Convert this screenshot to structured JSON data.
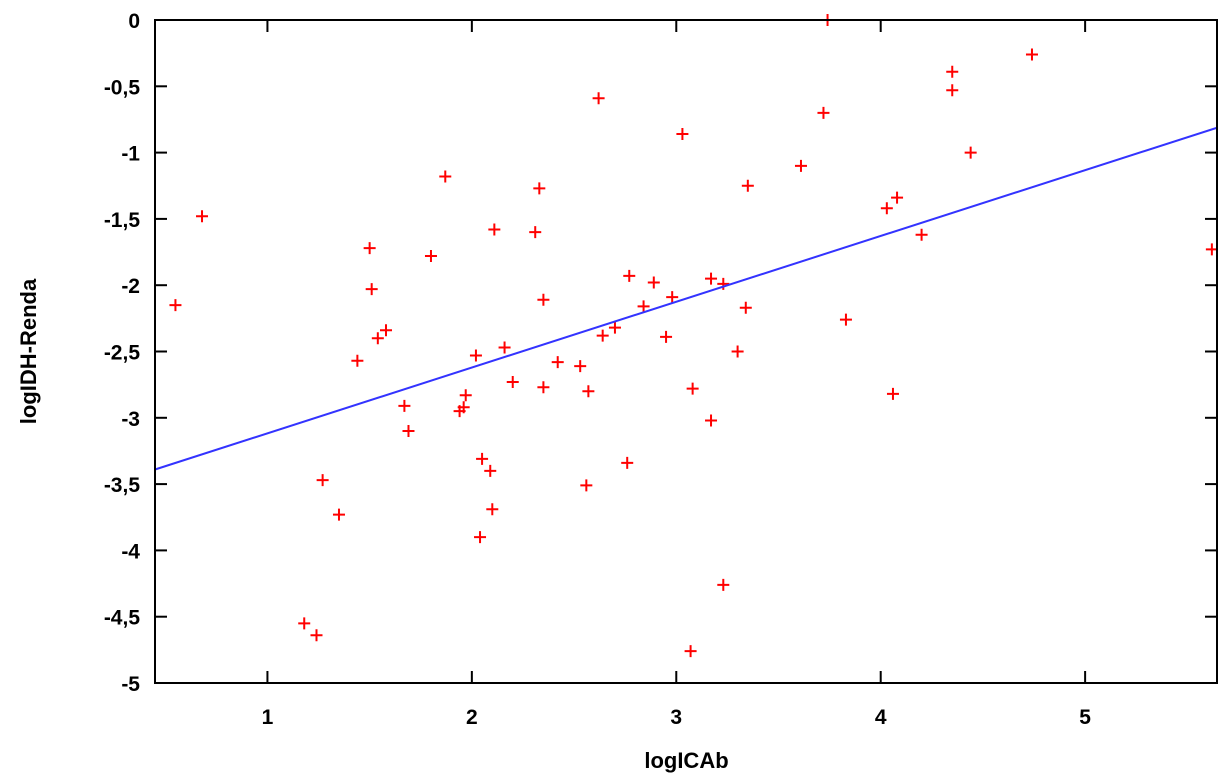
{
  "chart_data": {
    "type": "scatter",
    "title": "",
    "xlabel": "logICAb",
    "ylabel": "logIDH-Renda",
    "xlim": [
      0.45,
      5.65
    ],
    "ylim": [
      -5,
      0
    ],
    "x_ticks": [
      1,
      2,
      3,
      4,
      5
    ],
    "x_tick_labels": [
      "1",
      "2",
      "3",
      "4",
      "5"
    ],
    "y_ticks": [
      0,
      -0.5,
      -1,
      -1.5,
      -2,
      -2.5,
      -3,
      -3.5,
      -4,
      -4.5,
      -5
    ],
    "y_tick_labels": [
      "0",
      "-0,5",
      "-1",
      "-1,5",
      "-2",
      "-2,5",
      "-3",
      "-3,5",
      "-4",
      "-4,5",
      "-5"
    ],
    "grid": false,
    "point_color": "#ff0000",
    "line_color": "#3333ff",
    "points": [
      [
        0.55,
        -2.15
      ],
      [
        0.68,
        -1.48
      ],
      [
        1.18,
        -4.55
      ],
      [
        1.24,
        -4.64
      ],
      [
        1.27,
        -3.47
      ],
      [
        1.35,
        -3.73
      ],
      [
        1.44,
        -2.57
      ],
      [
        1.5,
        -1.72
      ],
      [
        1.51,
        -2.03
      ],
      [
        1.54,
        -2.4
      ],
      [
        1.58,
        -2.34
      ],
      [
        1.67,
        -2.91
      ],
      [
        1.69,
        -3.1
      ],
      [
        1.8,
        -1.78
      ],
      [
        1.87,
        -1.18
      ],
      [
        1.94,
        -2.95
      ],
      [
        1.96,
        -2.92
      ],
      [
        1.97,
        -2.83
      ],
      [
        2.02,
        -2.53
      ],
      [
        2.04,
        -3.9
      ],
      [
        2.05,
        -3.31
      ],
      [
        2.09,
        -3.4
      ],
      [
        2.1,
        -3.69
      ],
      [
        2.11,
        -1.58
      ],
      [
        2.16,
        -2.47
      ],
      [
        2.2,
        -2.73
      ],
      [
        2.31,
        -1.6
      ],
      [
        2.33,
        -1.27
      ],
      [
        2.35,
        -2.11
      ],
      [
        2.35,
        -2.77
      ],
      [
        2.42,
        -2.58
      ],
      [
        2.53,
        -2.61
      ],
      [
        2.56,
        -3.51
      ],
      [
        2.57,
        -2.8
      ],
      [
        2.62,
        -0.59
      ],
      [
        2.64,
        -2.38
      ],
      [
        2.7,
        -2.32
      ],
      [
        2.76,
        -3.34
      ],
      [
        2.77,
        -1.93
      ],
      [
        2.84,
        -2.16
      ],
      [
        2.89,
        -1.98
      ],
      [
        2.95,
        -2.39
      ],
      [
        2.98,
        -2.09
      ],
      [
        3.03,
        -0.86
      ],
      [
        3.07,
        -4.76
      ],
      [
        3.08,
        -2.78
      ],
      [
        3.17,
        -1.95
      ],
      [
        3.17,
        -3.02
      ],
      [
        3.23,
        -4.26
      ],
      [
        3.23,
        -1.99
      ],
      [
        3.3,
        -2.5
      ],
      [
        3.34,
        -2.17
      ],
      [
        3.35,
        -1.25
      ],
      [
        3.61,
        -1.1
      ],
      [
        3.72,
        -0.7
      ],
      [
        3.74,
        0.0
      ],
      [
        3.83,
        -2.26
      ],
      [
        4.03,
        -1.42
      ],
      [
        4.06,
        -2.82
      ],
      [
        4.08,
        -1.34
      ],
      [
        4.2,
        -1.62
      ],
      [
        4.35,
        -0.39
      ],
      [
        4.35,
        -0.53
      ],
      [
        4.44,
        -1.0
      ],
      [
        4.74,
        -0.26
      ],
      [
        5.62,
        -1.73
      ]
    ],
    "fit_line": {
      "x": [
        0.45,
        5.65
      ],
      "y": [
        -3.39,
        -0.81
      ]
    }
  }
}
